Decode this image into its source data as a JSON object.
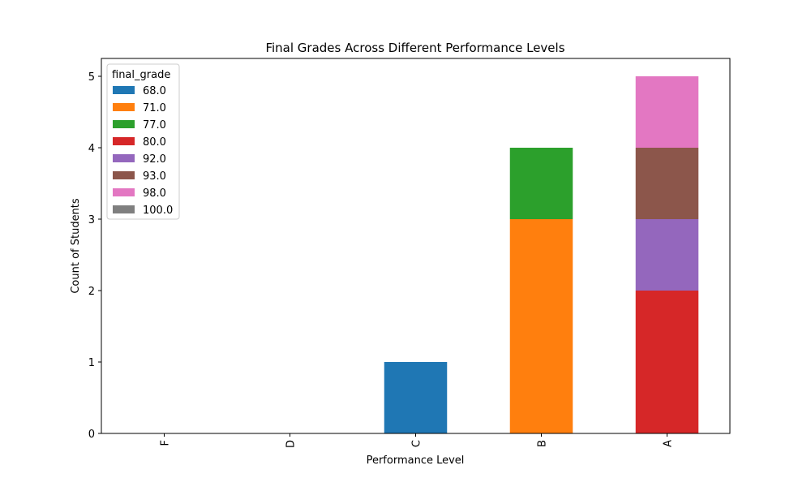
{
  "chart_data": {
    "type": "bar",
    "stacked": true,
    "title": "Final Grades Across Different Performance Levels",
    "xlabel": "Performance Level",
    "ylabel": "Count of Students",
    "categories": [
      "F",
      "D",
      "C",
      "B",
      "A"
    ],
    "ylim": [
      0,
      5.25
    ],
    "yticks": [
      0,
      1,
      2,
      3,
      4,
      5
    ],
    "grid": false,
    "legend": {
      "title": "final_grade",
      "placement": "top-left"
    },
    "series": [
      {
        "name": "68.0",
        "color": "#1f77b4",
        "values": [
          0,
          0,
          1,
          0,
          0
        ]
      },
      {
        "name": "71.0",
        "color": "#ff7f0e",
        "values": [
          0,
          0,
          0,
          3,
          0
        ]
      },
      {
        "name": "77.0",
        "color": "#2ca02c",
        "values": [
          0,
          0,
          0,
          1,
          0
        ]
      },
      {
        "name": "80.0",
        "color": "#d62728",
        "values": [
          0,
          0,
          0,
          0,
          2
        ]
      },
      {
        "name": "92.0",
        "color": "#9467bd",
        "values": [
          0,
          0,
          0,
          0,
          1
        ]
      },
      {
        "name": "93.0",
        "color": "#8c564b",
        "values": [
          0,
          0,
          0,
          0,
          1
        ]
      },
      {
        "name": "98.0",
        "color": "#e377c2",
        "values": [
          0,
          0,
          0,
          0,
          1
        ]
      },
      {
        "name": "100.0",
        "color": "#7f7f7f",
        "values": [
          0,
          0,
          0,
          0,
          0
        ]
      }
    ]
  }
}
